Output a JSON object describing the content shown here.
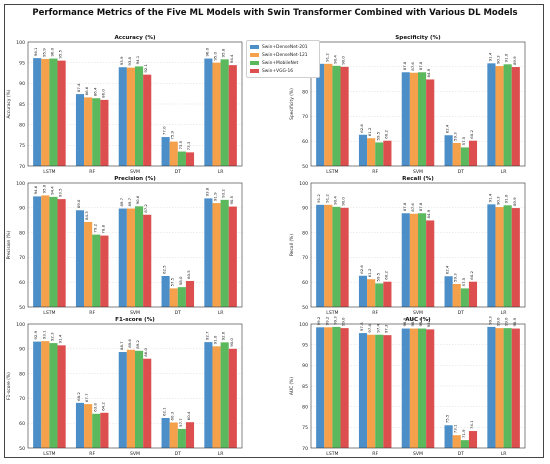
{
  "title": "Performance Metrics of the Five ML Models with Swin Transformer Combined with Various DL Models",
  "colors": {
    "Swin+DenseNet-201": "#4c8fc8",
    "Swin+DenseNet-121": "#f5a04a",
    "Swin+MobileNet": "#5cb85c",
    "Swin+VGG-16": "#dd4e4e"
  },
  "legend": [
    "Swin+DenseNet-201",
    "Swin+DenseNet-121",
    "Swin+MobileNet",
    "Swin+VGG-16"
  ],
  "chart_data": [
    {
      "type": "bar",
      "title": "Accuracy (%)",
      "ylabel": "Accuracy (%)",
      "categories": [
        "LSTM",
        "RF",
        "SVM",
        "DT",
        "LR"
      ],
      "ylim": [
        70,
        100
      ],
      "yticks": [
        70,
        75,
        80,
        85,
        90,
        95,
        100
      ],
      "series": [
        {
          "name": "Swin+DenseNet-201",
          "values": [
            96.1,
            87.4,
            93.9,
            77.0,
            96.0
          ]
        },
        {
          "name": "Swin+DenseNet-121",
          "values": [
            95.9,
            86.6,
            93.8,
            75.9,
            95.0
          ]
        },
        {
          "name": "Swin+MobileNet",
          "values": [
            96.0,
            86.4,
            94.1,
            73.5,
            95.8
          ]
        },
        {
          "name": "Swin+VGG-16",
          "values": [
            95.5,
            86.0,
            92.1,
            73.3,
            94.4
          ]
        }
      ]
    },
    {
      "type": "bar",
      "title": "Specificity (%)",
      "ylabel": "Specificity (%)",
      "categories": [
        "LSTM",
        "RF",
        "SVM",
        "DT",
        "LR"
      ],
      "ylim": [
        50,
        100
      ],
      "yticks": [
        50,
        60,
        70,
        80,
        90,
        100
      ],
      "series": [
        {
          "name": "Swin+DenseNet-201",
          "values": [
            91.2,
            62.6,
            87.8,
            62.4,
            91.4
          ]
        },
        {
          "name": "Swin+DenseNet-121",
          "values": [
            91.2,
            61.2,
            87.6,
            59.3,
            90.3
          ]
        },
        {
          "name": "Swin+MobileNet",
          "values": [
            90.4,
            59.5,
            87.8,
            57.5,
            91.0
          ]
        },
        {
          "name": "Swin+VGG-16",
          "values": [
            90.0,
            60.2,
            84.9,
            60.2,
            89.9
          ]
        }
      ]
    },
    {
      "type": "bar",
      "title": "Precision (%)",
      "ylabel": "Precision (%)",
      "categories": [
        "LSTM",
        "RF",
        "SVM",
        "DT",
        "LR"
      ],
      "ylim": [
        50,
        100
      ],
      "yticks": [
        50,
        60,
        70,
        80,
        90,
        100
      ],
      "series": [
        {
          "name": "Swin+DenseNet-201",
          "values": [
            94.6,
            89.0,
            89.7,
            62.5,
            93.8
          ]
        },
        {
          "name": "Swin+DenseNet-121",
          "values": [
            95.0,
            84.3,
            89.7,
            57.5,
            91.9
          ]
        },
        {
          "name": "Swin+MobileNet",
          "values": [
            94.4,
            79.2,
            90.6,
            58.0,
            93.2
          ]
        },
        {
          "name": "Swin+VGG-16",
          "values": [
            93.5,
            78.8,
            87.2,
            60.5,
            90.5
          ]
        }
      ]
    },
    {
      "type": "bar",
      "title": "Recall (%)",
      "ylabel": "Recall (%)",
      "categories": [
        "LSTM",
        "RF",
        "SVM",
        "DT",
        "LR"
      ],
      "ylim": [
        50,
        100
      ],
      "yticks": [
        50,
        60,
        70,
        80,
        90,
        100
      ],
      "series": [
        {
          "name": "Swin+DenseNet-201",
          "values": [
            91.2,
            62.6,
            87.8,
            62.4,
            91.4
          ]
        },
        {
          "name": "Swin+DenseNet-121",
          "values": [
            91.2,
            61.2,
            87.6,
            59.3,
            90.3
          ]
        },
        {
          "name": "Swin+MobileNet",
          "values": [
            90.4,
            59.5,
            87.8,
            57.5,
            91.0
          ]
        },
        {
          "name": "Swin+VGG-16",
          "values": [
            90.0,
            60.2,
            84.9,
            60.2,
            89.9
          ]
        }
      ]
    },
    {
      "type": "bar",
      "title": "F1-score (%)",
      "ylabel": "F1-score (%)",
      "categories": [
        "LSTM",
        "RF",
        "SVM",
        "DT",
        "LR"
      ],
      "ylim": [
        50,
        100
      ],
      "yticks": [
        50,
        60,
        70,
        80,
        90,
        100
      ],
      "series": [
        {
          "name": "Swin+DenseNet-201",
          "values": [
            92.9,
            68.2,
            88.7,
            62.1,
            92.7
          ]
        },
        {
          "name": "Swin+DenseNet-121",
          "values": [
            93.1,
            67.7,
            89.6,
            60.3,
            91.0
          ]
        },
        {
          "name": "Swin+MobileNet",
          "values": [
            92.3,
            63.8,
            89.2,
            57.7,
            92.6
          ]
        },
        {
          "name": "Swin+VGG-16",
          "values": [
            91.4,
            64.2,
            86.0,
            60.4,
            90.0
          ]
        }
      ]
    },
    {
      "type": "bar",
      "title": "AUC (%)",
      "ylabel": "AUC (%)",
      "categories": [
        "LSTM",
        "RF",
        "SVM",
        "DT",
        "LR"
      ],
      "ylim": [
        70,
        100
      ],
      "yticks": [
        70,
        75,
        80,
        85,
        90,
        95,
        100
      ],
      "series": [
        {
          "name": "Swin+DenseNet-201",
          "values": [
            99.2,
            97.8,
            98.9,
            75.5,
            99.3
          ]
        },
        {
          "name": "Swin+DenseNet-121",
          "values": [
            99.2,
            97.4,
            98.9,
            73.1,
            99.0
          ]
        },
        {
          "name": "Swin+MobileNet",
          "values": [
            99.3,
            97.4,
            98.9,
            71.9,
            99.0
          ]
        },
        {
          "name": "Swin+VGG-16",
          "values": [
            99.0,
            97.3,
            98.7,
            74.1,
            98.9
          ]
        }
      ]
    }
  ]
}
